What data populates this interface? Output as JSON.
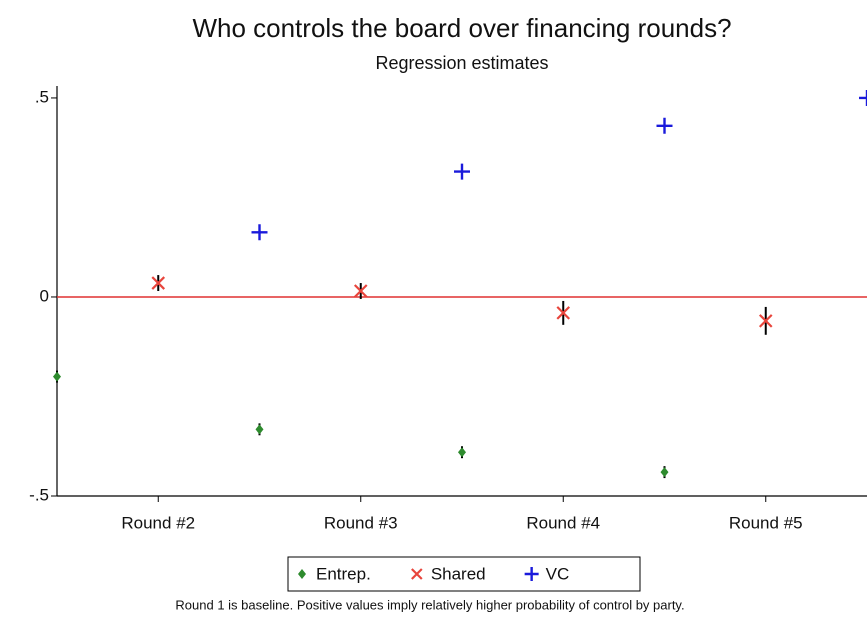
{
  "chart_data": {
    "type": "scatter",
    "title": "Who controls the board over financing rounds?",
    "subtitle": "Regression estimates",
    "note": "Round 1 is baseline.  Positive values imply relatively higher probability of control by party.",
    "categories": [
      "Round #2",
      "Round #3",
      "Round #4",
      "Round #5"
    ],
    "series": [
      {
        "name": "Entrep.",
        "color": "#2e8b2e",
        "marker": "diamond",
        "values": [
          -0.2,
          -0.3325,
          -0.39,
          -0.44
        ],
        "errors": [
          0.015,
          0.015,
          0.015,
          0.015
        ]
      },
      {
        "name": "Shared",
        "color": "#e8453c",
        "marker": "x",
        "values": [
          0.035,
          0.015,
          -0.04,
          -0.06
        ],
        "errors": [
          0.02,
          0.02,
          0.03,
          0.035
        ]
      },
      {
        "name": "VC",
        "color": "#1a1adb",
        "marker": "plus",
        "values": [
          0.1625,
          0.315,
          0.43,
          0.5
        ],
        "errors": [
          0.01,
          0.01,
          0.01,
          0.01
        ]
      }
    ],
    "ylim": [
      -0.5,
      0.53
    ],
    "yticks": [
      {
        "value": 0.5,
        "label": ".5"
      },
      0,
      {
        "value": -0.5,
        "label": "-.5"
      }
    ],
    "zero_line": {
      "value": 0,
      "color": "#e03030"
    },
    "legend": "bottom"
  }
}
